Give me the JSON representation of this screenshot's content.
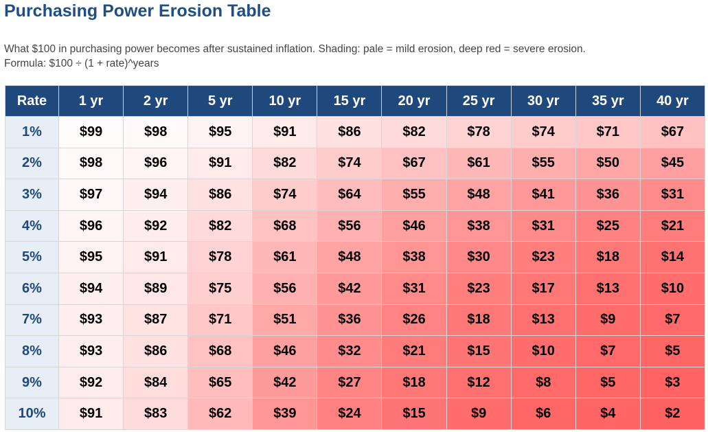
{
  "header": {
    "title": "Purchasing Power Erosion Table",
    "subtitle": "What $100 in purchasing power becomes after sustained inflation. Shading: pale = mild erosion, deep red = severe erosion.",
    "formula": "Formula: $100 ÷ (1 + rate)^years"
  },
  "table": {
    "columns": [
      "Rate",
      "1 yr",
      "2 yr",
      "5 yr",
      "10 yr",
      "15 yr",
      "20 yr",
      "25 yr",
      "30 yr",
      "35 yr",
      "40 yr"
    ],
    "rows": [
      [
        "1%",
        "$99",
        "$98",
        "$95",
        "$91",
        "$86",
        "$82",
        "$78",
        "$74",
        "$71",
        "$67"
      ],
      [
        "2%",
        "$98",
        "$96",
        "$91",
        "$82",
        "$74",
        "$67",
        "$61",
        "$55",
        "$50",
        "$45"
      ],
      [
        "3%",
        "$97",
        "$94",
        "$86",
        "$74",
        "$64",
        "$55",
        "$48",
        "$41",
        "$36",
        "$31"
      ],
      [
        "4%",
        "$96",
        "$92",
        "$82",
        "$68",
        "$56",
        "$46",
        "$38",
        "$31",
        "$25",
        "$21"
      ],
      [
        "5%",
        "$95",
        "$91",
        "$78",
        "$61",
        "$48",
        "$38",
        "$30",
        "$23",
        "$18",
        "$14"
      ],
      [
        "6%",
        "$94",
        "$89",
        "$75",
        "$56",
        "$42",
        "$31",
        "$23",
        "$17",
        "$13",
        "$10"
      ],
      [
        "7%",
        "$93",
        "$87",
        "$71",
        "$51",
        "$36",
        "$26",
        "$18",
        "$13",
        "$9",
        "$7"
      ],
      [
        "8%",
        "$93",
        "$86",
        "$68",
        "$46",
        "$32",
        "$21",
        "$15",
        "$10",
        "$7",
        "$5"
      ],
      [
        "9%",
        "$92",
        "$84",
        "$65",
        "$42",
        "$27",
        "$18",
        "$12",
        "$8",
        "$5",
        "$3"
      ],
      [
        "10%",
        "$91",
        "$83",
        "$62",
        "$39",
        "$24",
        "$15",
        "$9",
        "$6",
        "$4",
        "$2"
      ]
    ]
  }
}
